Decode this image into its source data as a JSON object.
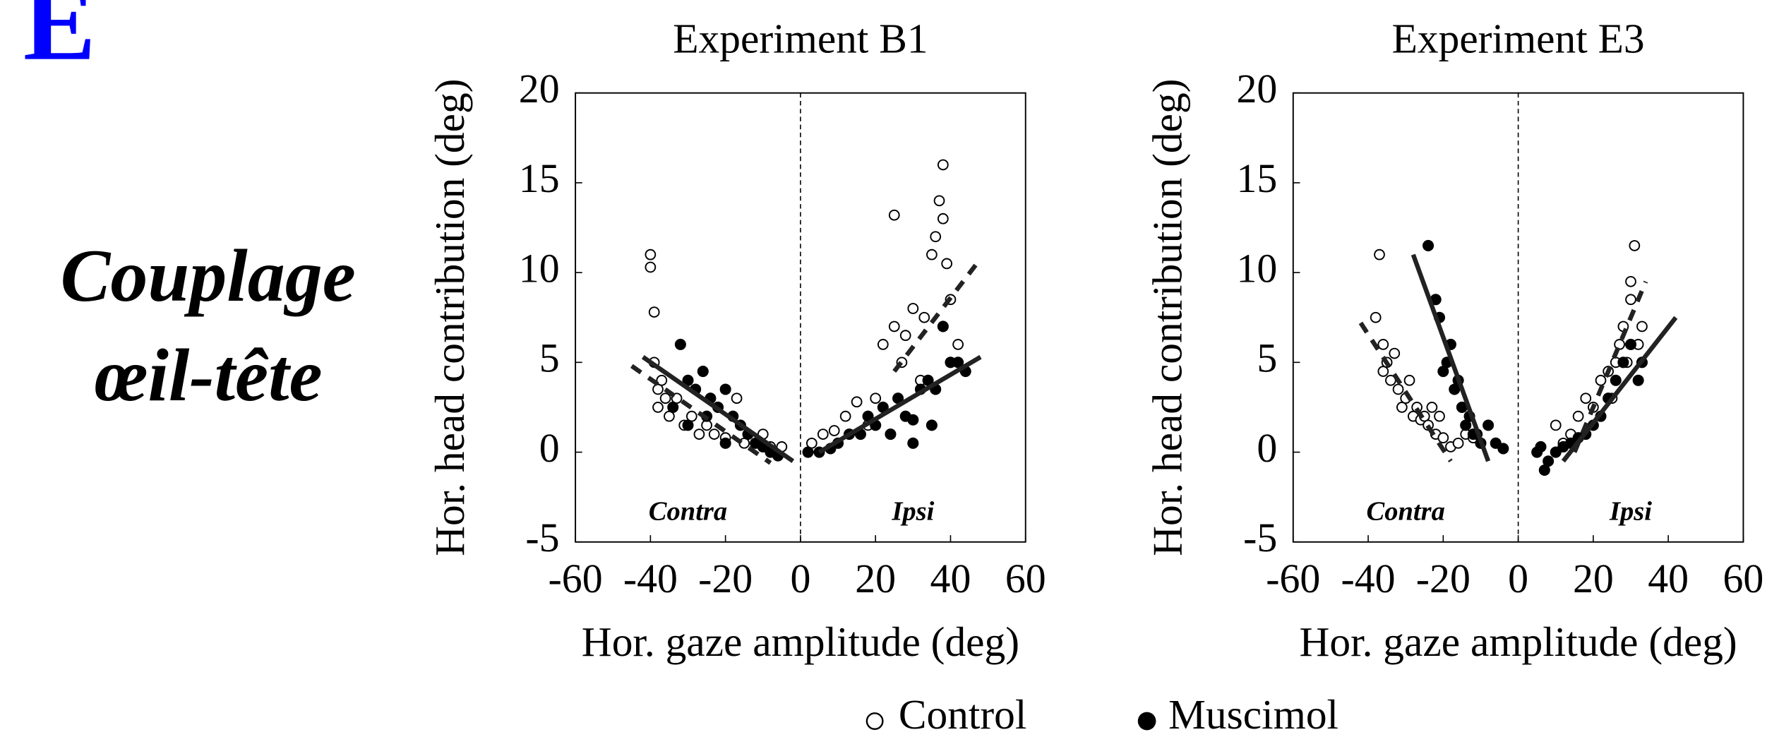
{
  "panel_label": "E",
  "heading": [
    "Couplage",
    "œil-tête"
  ],
  "chart_data": [
    {
      "type": "scatter",
      "title": "Experiment B1",
      "x_label": "Hor. gaze amplitude (deg)",
      "y_label": "Hor. head contribution (deg)",
      "xlim": [
        -60,
        60
      ],
      "ylim": [
        -5,
        20
      ],
      "xticks": [
        -60,
        -40,
        -20,
        0,
        20,
        40,
        60
      ],
      "yticks": [
        -5,
        0,
        5,
        10,
        15,
        20
      ],
      "annotations": [
        "Contra",
        "Ipsi"
      ],
      "series": [
        {
          "name": "Control",
          "color": "#000000",
          "marker": "open",
          "x": [
            -40,
            -40,
            -39,
            -39,
            -38,
            -38,
            -37,
            -36,
            -35,
            -33,
            -31,
            -29,
            -27,
            -25,
            -23,
            -20,
            -17,
            -15,
            -12,
            -10,
            -8,
            -5,
            3,
            6,
            9,
            12,
            15,
            18,
            20,
            22,
            25,
            27,
            28,
            30,
            32,
            33,
            35,
            36,
            37,
            38,
            38,
            39,
            40,
            42,
            25
          ],
          "values": [
            11,
            10.3,
            7.8,
            5,
            3.5,
            2.5,
            4,
            3,
            2,
            3,
            1.5,
            2,
            1,
            1.5,
            1,
            0.8,
            3,
            0.5,
            0.5,
            1,
            0.3,
            0.3,
            0.5,
            1,
            1.2,
            2,
            2.8,
            1.5,
            3,
            6,
            7,
            5,
            6.5,
            8,
            4,
            7.5,
            11,
            12,
            14,
            13,
            16,
            10.5,
            8.5,
            6,
            13.2
          ]
        },
        {
          "name": "Muscimol",
          "color": "#000000",
          "marker": "filled",
          "x": [
            -32,
            -30,
            -28,
            -26,
            -24,
            -22,
            -20,
            -18,
            -16,
            -14,
            -12,
            -10,
            -8,
            -6,
            -34,
            -30,
            -25,
            -20,
            2,
            5,
            8,
            10,
            13,
            16,
            18,
            20,
            22,
            24,
            26,
            28,
            30,
            32,
            34,
            36,
            38,
            40,
            42,
            44,
            30,
            35
          ],
          "values": [
            6,
            4,
            3.5,
            4.5,
            3,
            2.5,
            3.5,
            2,
            1.5,
            1,
            0.5,
            0.3,
            0,
            -0.2,
            2.5,
            1.5,
            2,
            0.5,
            0,
            0,
            0.2,
            0.5,
            1,
            1,
            2,
            1.5,
            2.5,
            1,
            3,
            2,
            1.8,
            3.5,
            4,
            3.5,
            7,
            5,
            5,
            4.5,
            0.5,
            1.5
          ]
        }
      ],
      "fits": [
        {
          "style": "dashed",
          "x": [
            -45,
            -8
          ],
          "y": [
            4.8,
            -0.6
          ]
        },
        {
          "style": "solid",
          "x": [
            -42,
            -2
          ],
          "y": [
            5.3,
            -0.5
          ]
        },
        {
          "style": "solid",
          "x": [
            5,
            48
          ],
          "y": [
            0,
            5.3
          ]
        },
        {
          "style": "dashed",
          "x": [
            25,
            47
          ],
          "y": [
            4.5,
            10.5
          ]
        }
      ]
    },
    {
      "type": "scatter",
      "title": "Experiment E3",
      "x_label": "Hor. gaze amplitude (deg)",
      "y_label": "Hor. head contribution (deg)",
      "xlim": [
        -60,
        60
      ],
      "ylim": [
        -5,
        20
      ],
      "xticks": [
        -60,
        -40,
        -20,
        0,
        20,
        40,
        60
      ],
      "yticks": [
        -5,
        0,
        5,
        10,
        15,
        20
      ],
      "annotations": [
        "Contra",
        "Ipsi"
      ],
      "series": [
        {
          "name": "Control",
          "color": "#000000",
          "marker": "open",
          "x": [
            -38,
            -37,
            -36,
            -36,
            -35,
            -34,
            -33,
            -32,
            -31,
            -30,
            -29,
            -28,
            -27,
            -26,
            -25,
            -24,
            -23,
            -22,
            -21,
            -20,
            -18,
            -16,
            -14,
            -12,
            10,
            12,
            14,
            16,
            18,
            20,
            22,
            24,
            25,
            26,
            27,
            28,
            29,
            30,
            30,
            31,
            32,
            33
          ],
          "values": [
            7.5,
            11,
            6,
            4.5,
            5,
            4,
            5.5,
            3.5,
            2.5,
            3,
            4,
            2,
            2.5,
            1.8,
            2,
            1.5,
            2.5,
            1,
            2,
            0.8,
            0.3,
            0.5,
            1,
            0.8,
            1.5,
            0.5,
            1,
            2,
            3,
            2.5,
            4,
            4.5,
            3,
            5,
            6,
            7,
            5,
            9.5,
            8.5,
            11.5,
            6,
            7
          ]
        },
        {
          "name": "Muscimol",
          "color": "#000000",
          "marker": "filled",
          "x": [
            -24,
            -22,
            -21,
            -20,
            -19,
            -18,
            -17,
            -16,
            -15,
            -14,
            -13,
            -12,
            -11,
            -10,
            -8,
            -6,
            -4,
            5,
            6,
            7,
            8,
            10,
            12,
            14,
            16,
            18,
            20,
            22,
            24,
            26,
            28,
            30,
            32,
            33
          ],
          "values": [
            11.5,
            8.5,
            7.5,
            4.5,
            5,
            6,
            3.5,
            4,
            2.5,
            1.5,
            2,
            1,
            1,
            0.5,
            1.5,
            0.5,
            0.2,
            0,
            0.3,
            -1,
            -0.5,
            0,
            0.3,
            0.5,
            0.8,
            1,
            1.5,
            2,
            3,
            4,
            5,
            6,
            4,
            5
          ]
        }
      ],
      "fits": [
        {
          "style": "dashed",
          "x": [
            -42,
            -18
          ],
          "y": [
            7.2,
            -0.5
          ]
        },
        {
          "style": "solid",
          "x": [
            -28,
            -8
          ],
          "y": [
            11,
            -0.5
          ]
        },
        {
          "style": "solid",
          "x": [
            12,
            42
          ],
          "y": [
            -0.5,
            7.5
          ]
        },
        {
          "style": "dashed",
          "x": [
            15,
            34
          ],
          "y": [
            0,
            9.5
          ]
        }
      ]
    }
  ]
}
